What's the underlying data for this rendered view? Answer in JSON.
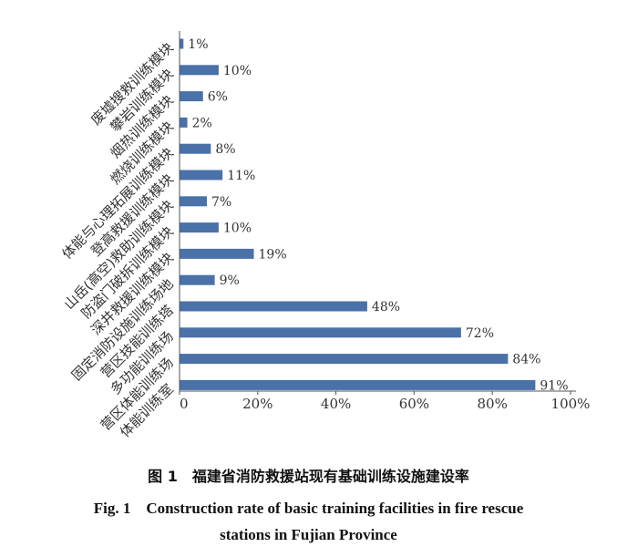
{
  "chart_data": {
    "type": "bar",
    "orientation": "horizontal",
    "categories": [
      "废墟搜救训练模块",
      "攀岩训练模块",
      "烟热训练模块",
      "燃烧训练模块",
      "体能与心理拓展训练模块",
      "登高救援训练模块",
      "山岳(高空)救助训练模块",
      "防盗门破拆训练模块",
      "深井救援训练模块",
      "固定消防设施训练场地",
      "营区技能训练塔",
      "多功能训练场",
      "营区体能训练场",
      "体能训练室"
    ],
    "values": [
      1,
      10,
      6,
      2,
      8,
      11,
      7,
      10,
      19,
      9,
      48,
      72,
      84,
      91
    ],
    "value_labels": [
      "1%",
      "10%",
      "6%",
      "2%",
      "8%",
      "11%",
      "7%",
      "10%",
      "19%",
      "9%",
      "48%",
      "72%",
      "84%",
      "91%"
    ],
    "xlim": [
      0,
      100
    ],
    "x_ticks": [
      "0",
      "20%",
      "40%",
      "60%",
      "80%",
      "100%"
    ],
    "bar_color": "#4a71a8",
    "grid": false
  },
  "caption": {
    "cn": "图 1　福建省消防救援站现有基础训练设施建设率",
    "en_line1": "Fig. 1　Construction rate of basic training facilities in fire rescue",
    "en_line2": "stations in Fujian Province"
  }
}
